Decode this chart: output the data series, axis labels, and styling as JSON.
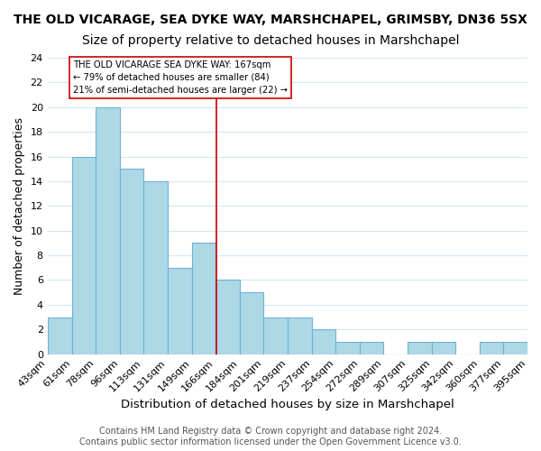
{
  "title": "THE OLD VICARAGE, SEA DYKE WAY, MARSHCHAPEL, GRIMSBY, DN36 5SX",
  "subtitle": "Size of property relative to detached houses in Marshchapel",
  "xlabel": "Distribution of detached houses by size in Marshchapel",
  "ylabel": "Number of detached properties",
  "bin_labels": [
    "43sqm",
    "61sqm",
    "78sqm",
    "96sqm",
    "113sqm",
    "131sqm",
    "149sqm",
    "166sqm",
    "184sqm",
    "201sqm",
    "219sqm",
    "237sqm",
    "254sqm",
    "272sqm",
    "289sqm",
    "307sqm",
    "325sqm",
    "342sqm",
    "360sqm",
    "377sqm",
    "395sqm"
  ],
  "bin_edges": [
    43,
    61,
    78,
    96,
    113,
    131,
    149,
    166,
    184,
    201,
    219,
    237,
    254,
    272,
    289,
    307,
    325,
    342,
    360,
    377,
    395
  ],
  "counts": [
    3,
    16,
    20,
    15,
    14,
    7,
    9,
    6,
    5,
    3,
    3,
    2,
    1,
    1,
    0,
    1,
    1,
    0,
    1,
    1
  ],
  "bar_color": "#add8e6",
  "bar_edge_color": "#6db3d4",
  "grid_color": "#d0e8f8",
  "vline_x": 167,
  "vline_color": "#cc0000",
  "annotation_line1": "THE OLD VICARAGE SEA DYKE WAY: 167sqm",
  "annotation_line2": "← 79% of detached houses are smaller (84)",
  "annotation_line3": "21% of semi-detached houses are larger (22) →",
  "annotation_box_color": "white",
  "annotation_box_edge_color": "#cc0000",
  "ylim": [
    0,
    24
  ],
  "yticks": [
    0,
    2,
    4,
    6,
    8,
    10,
    12,
    14,
    16,
    18,
    20,
    22,
    24
  ],
  "footer": "Contains HM Land Registry data © Crown copyright and database right 2024.\nContains public sector information licensed under the Open Government Licence v3.0.",
  "title_fontsize": 10,
  "subtitle_fontsize": 10,
  "xlabel_fontsize": 9.5,
  "ylabel_fontsize": 9,
  "tick_fontsize": 8,
  "footer_fontsize": 7
}
